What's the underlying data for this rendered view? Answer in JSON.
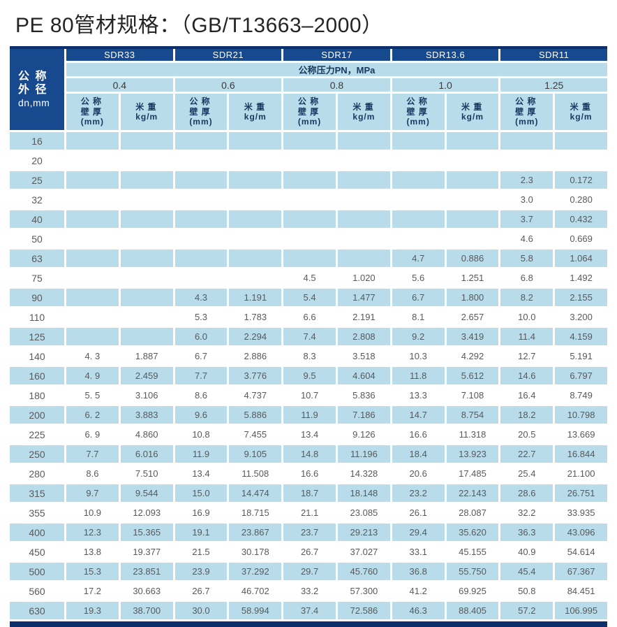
{
  "title": "PE 80管材规格：（GB/T13663–2000）",
  "colors": {
    "navy": "#17498f",
    "dark_navy": "#0c2f6b",
    "light_blue": "#b9dcea",
    "header_text": "#16385f",
    "data_text": "#58595b"
  },
  "table": {
    "corner": {
      "line1": "公 称",
      "line2": "外 径",
      "line3": "dn,mm"
    },
    "pressure_label": "公称压力PN，MPa",
    "groups": [
      {
        "sdr": "SDR33",
        "pressure": "0.4"
      },
      {
        "sdr": "SDR21",
        "pressure": "0.6"
      },
      {
        "sdr": "SDR17",
        "pressure": "0.8"
      },
      {
        "sdr": "SDR13.6",
        "pressure": "1.0"
      },
      {
        "sdr": "SDR11",
        "pressure": "1.25"
      }
    ],
    "sub_header": {
      "wall_lines": [
        "公 称",
        "壁 厚",
        "(mm)"
      ],
      "weight_lines": [
        "米 重",
        "kg/m"
      ]
    },
    "rows": [
      {
        "dn": "16",
        "values": [
          "",
          "",
          "",
          "",
          "",
          "",
          "",
          "",
          "",
          ""
        ]
      },
      {
        "dn": "20",
        "values": [
          "",
          "",
          "",
          "",
          "",
          "",
          "",
          "",
          "",
          ""
        ]
      },
      {
        "dn": "25",
        "values": [
          "",
          "",
          "",
          "",
          "",
          "",
          "",
          "",
          "2.3",
          "0.172"
        ]
      },
      {
        "dn": "32",
        "values": [
          "",
          "",
          "",
          "",
          "",
          "",
          "",
          "",
          "3.0",
          "0.280"
        ]
      },
      {
        "dn": "40",
        "values": [
          "",
          "",
          "",
          "",
          "",
          "",
          "",
          "",
          "3.7",
          "0.432"
        ]
      },
      {
        "dn": "50",
        "values": [
          "",
          "",
          "",
          "",
          "",
          "",
          "",
          "",
          "4.6",
          "0.669"
        ]
      },
      {
        "dn": "63",
        "values": [
          "",
          "",
          "",
          "",
          "",
          "",
          "4.7",
          "0.886",
          "5.8",
          "1.064"
        ]
      },
      {
        "dn": "75",
        "values": [
          "",
          "",
          "",
          "",
          "4.5",
          "1.020",
          "5.6",
          "1.251",
          "6.8",
          "1.492"
        ]
      },
      {
        "dn": "90",
        "values": [
          "",
          "",
          "4.3",
          "1.191",
          "5.4",
          "1.477",
          "6.7",
          "1.800",
          "8.2",
          "2.155"
        ]
      },
      {
        "dn": "110",
        "values": [
          "",
          "",
          "5.3",
          "1.783",
          "6.6",
          "2.191",
          "8.1",
          "2.657",
          "10.0",
          "3.200"
        ]
      },
      {
        "dn": "125",
        "values": [
          "",
          "",
          "6.0",
          "2.294",
          "7.4",
          "2.808",
          "9.2",
          "3.419",
          "11.4",
          "4.159"
        ]
      },
      {
        "dn": "140",
        "values": [
          "4. 3",
          "1.887",
          "6.7",
          "2.886",
          "8.3",
          "3.518",
          "10.3",
          "4.292",
          "12.7",
          "5.191"
        ]
      },
      {
        "dn": "160",
        "values": [
          "4. 9",
          "2.459",
          "7.7",
          "3.776",
          "9.5",
          "4.604",
          "11.8",
          "5.612",
          "14.6",
          "6.797"
        ]
      },
      {
        "dn": "180",
        "values": [
          "5. 5",
          "3.106",
          "8.6",
          "4.737",
          "10.7",
          "5.836",
          "13.3",
          "7.108",
          "16.4",
          "8.749"
        ]
      },
      {
        "dn": "200",
        "values": [
          "6. 2",
          "3.883",
          "9.6",
          "5.886",
          "11.9",
          "7.186",
          "14.7",
          "8.754",
          "18.2",
          "10.798"
        ]
      },
      {
        "dn": "225",
        "values": [
          "6. 9",
          "4.860",
          "10.8",
          "7.455",
          "13.4",
          "9.126",
          "16.6",
          "11.318",
          "20.5",
          "13.669"
        ]
      },
      {
        "dn": "250",
        "values": [
          "7.7",
          "6.016",
          "11.9",
          "9.105",
          "14.8",
          "11.196",
          "18.4",
          "13.923",
          "22.7",
          "16.844"
        ]
      },
      {
        "dn": "280",
        "values": [
          "8.6",
          "7.510",
          "13.4",
          "11.508",
          "16.6",
          "14.328",
          "20.6",
          "17.485",
          "25.4",
          "21.100"
        ]
      },
      {
        "dn": "315",
        "values": [
          "9.7",
          "9.544",
          "15.0",
          "14.474",
          "18.7",
          "18.148",
          "23.2",
          "22.143",
          "28.6",
          "26.751"
        ]
      },
      {
        "dn": "355",
        "values": [
          "10.9",
          "12.093",
          "16.9",
          "18.715",
          "21.1",
          "23.085",
          "26.1",
          "28.087",
          "32.2",
          "33.935"
        ]
      },
      {
        "dn": "400",
        "values": [
          "12.3",
          "15.365",
          "19.1",
          "23.867",
          "23.7",
          "29.213",
          "29.4",
          "35.620",
          "36.3",
          "43.096"
        ]
      },
      {
        "dn": "450",
        "values": [
          "13.8",
          "19.377",
          "21.5",
          "30.178",
          "26.7",
          "37.027",
          "33.1",
          "45.155",
          "40.9",
          "54.614"
        ]
      },
      {
        "dn": "500",
        "values": [
          "15.3",
          "23.851",
          "23.9",
          "37.292",
          "29.7",
          "45.760",
          "36.8",
          "55.750",
          "45.4",
          "67.367"
        ]
      },
      {
        "dn": "560",
        "values": [
          "17.2",
          "30.663",
          "26.7",
          "46.702",
          "33.2",
          "57.300",
          "41.2",
          "69.925",
          "50.8",
          "84.451"
        ]
      },
      {
        "dn": "630",
        "values": [
          "19.3",
          "38.700",
          "30.0",
          "58.994",
          "37.4",
          "72.586",
          "46.3",
          "88.405",
          "57.2",
          "106.995"
        ]
      }
    ]
  }
}
